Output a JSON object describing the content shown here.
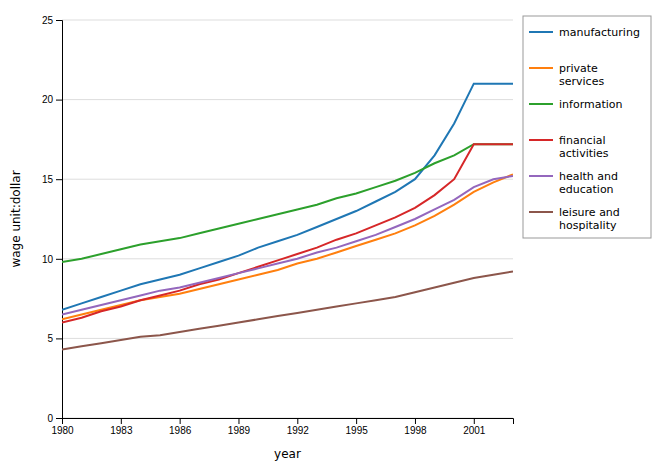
{
  "chart_data": {
    "type": "line",
    "xlabel": "year",
    "ylabel": "wage unit:dollar",
    "x": [
      1980,
      1981,
      1982,
      1983,
      1984,
      1985,
      1986,
      1987,
      1988,
      1989,
      1990,
      1991,
      1992,
      1993,
      1994,
      1995,
      1996,
      1997,
      1998,
      1999,
      2000,
      2001,
      2002,
      2003
    ],
    "series": [
      {
        "name": "manufacturing",
        "values": [
          6.8,
          7.2,
          7.6,
          8.0,
          8.4,
          8.7,
          9.0,
          9.4,
          9.8,
          10.2,
          10.7,
          11.1,
          11.5,
          12.0,
          12.5,
          13.0,
          13.6,
          14.2,
          15.0,
          16.5,
          18.5,
          21.0,
          21.0,
          21.0
        ]
      },
      {
        "name": "private\nservices",
        "values": [
          6.2,
          6.5,
          6.8,
          7.1,
          7.4,
          7.6,
          7.8,
          8.1,
          8.4,
          8.7,
          9.0,
          9.3,
          9.7,
          10.0,
          10.4,
          10.8,
          11.2,
          11.6,
          12.1,
          12.7,
          13.4,
          14.2,
          14.8,
          15.3
        ]
      },
      {
        "name": "information",
        "values": [
          9.8,
          10.0,
          10.3,
          10.6,
          10.9,
          11.1,
          11.3,
          11.6,
          11.9,
          12.2,
          12.5,
          12.8,
          13.1,
          13.4,
          13.8,
          14.1,
          14.5,
          14.9,
          15.4,
          16.0,
          16.5,
          17.2,
          17.2,
          17.2
        ]
      },
      {
        "name": "financial\nactivities",
        "values": [
          6.0,
          6.3,
          6.7,
          7.0,
          7.4,
          7.7,
          8.0,
          8.4,
          8.7,
          9.1,
          9.5,
          9.9,
          10.3,
          10.7,
          11.2,
          11.6,
          12.1,
          12.6,
          13.2,
          14.0,
          15.0,
          17.2,
          17.2,
          17.2
        ]
      },
      {
        "name": "health and\neducation",
        "values": [
          6.5,
          6.8,
          7.1,
          7.4,
          7.7,
          8.0,
          8.2,
          8.5,
          8.8,
          9.1,
          9.4,
          9.7,
          10.0,
          10.4,
          10.7,
          11.1,
          11.5,
          12.0,
          12.5,
          13.1,
          13.7,
          14.5,
          15.0,
          15.2
        ]
      },
      {
        "name": "leisure and\nhospitality",
        "values": [
          4.3,
          4.5,
          4.7,
          4.9,
          5.1,
          5.2,
          5.4,
          5.6,
          5.8,
          6.0,
          6.2,
          6.4,
          6.6,
          6.8,
          7.0,
          7.2,
          7.4,
          7.6,
          7.9,
          8.2,
          8.5,
          8.8,
          9.0,
          9.2
        ]
      }
    ],
    "xlim": [
      1980,
      2003
    ],
    "xticks": [
      1980,
      1983,
      1986,
      1989,
      1992,
      1995,
      1998,
      2001
    ],
    "ylim": [
      0,
      25
    ],
    "yticks": [
      0,
      5,
      10,
      15,
      20,
      25
    ],
    "grid": true,
    "legend": "right"
  }
}
